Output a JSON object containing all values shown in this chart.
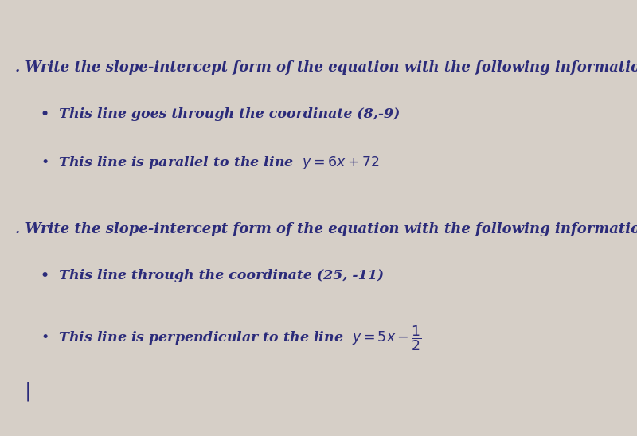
{
  "background_color": "#d6cfc7",
  "text_color": "#2b2b7a",
  "font_size_main": 13,
  "font_size_bullet": 12.5,
  "question1_header": ". Write the slope-intercept form of the equation with the following information:",
  "question1_bullet1": "This line goes through the coordinate (8,-9)",
  "question1_bullet2_plain": "•  This line is parallel to the line  $y = 6x + 72$",
  "question2_header": ". Write the slope-intercept form of the equation with the following information:",
  "question2_bullet1": "This line through the coordinate (25, -11)",
  "question2_bullet2_plain": "•  This line is perpendicular to the line  $y = 5x - \\dfrac{1}{2}$"
}
